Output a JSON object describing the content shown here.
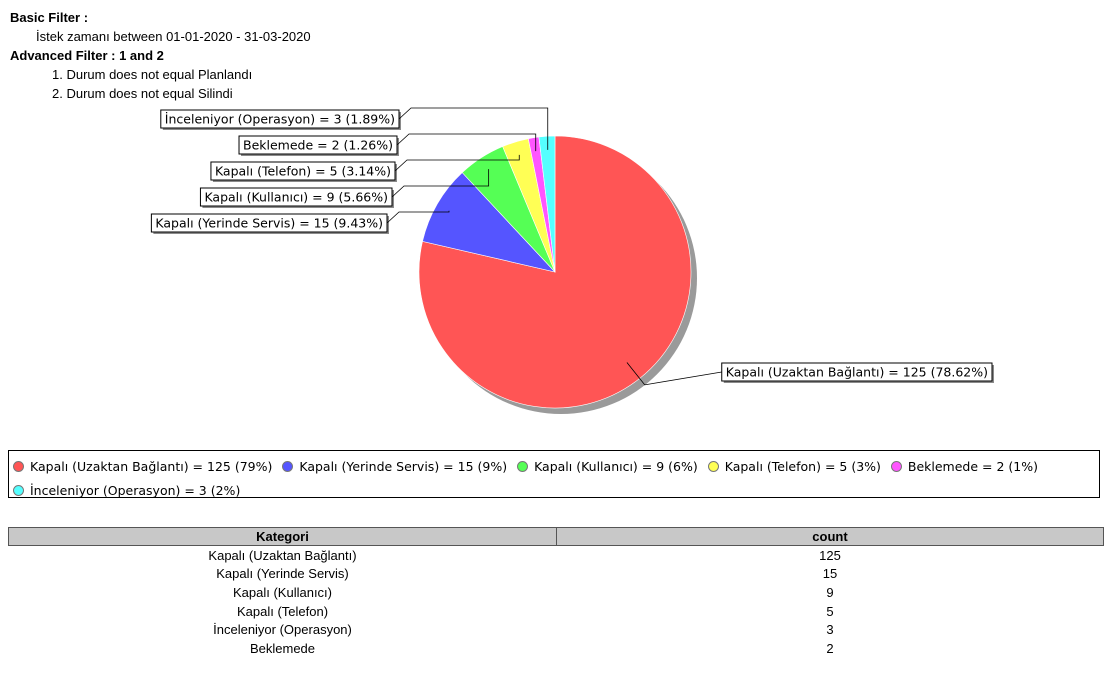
{
  "filters": {
    "basic_label": "Basic Filter :",
    "basic_condition": "İstek zamanı between 01-01-2020 - 31-03-2020",
    "advanced_label": "Advanced Filter : 1 and 2",
    "conditions": [
      "1. Durum does not equal Planlandı",
      "2. Durum does not equal Silindi"
    ]
  },
  "chart_data": {
    "type": "pie",
    "categories": [
      "Kapalı (Uzaktan Bağlantı)",
      "Kapalı (Yerinde Servis)",
      "Kapalı (Kullanıcı)",
      "Kapalı (Telefon)",
      "Beklemede",
      "İnceleniyor (Operasyon)"
    ],
    "values": [
      125,
      15,
      9,
      5,
      2,
      3
    ],
    "colors": [
      "#ff5555",
      "#5555ff",
      "#55ff55",
      "#ffff55",
      "#ff55ff",
      "#55ffff"
    ],
    "slice_labels": [
      "Kapalı (Uzaktan Bağlantı) = 125 (78.62%)",
      "Kapalı (Yerinde Servis) = 15 (9.43%)",
      "Kapalı (Kullanıcı) = 9 (5.66%)",
      "Kapalı (Telefon) = 5 (3.14%)",
      "Beklemede = 2 (1.26%)",
      "İnceleniyor (Operasyon) = 3 (1.89%)"
    ],
    "legend": [
      "Kapalı (Uzaktan Bağlantı) = 125 (79%)",
      "Kapalı (Yerinde Servis) = 15 (9%)",
      "Kapalı (Kullanıcı) = 9 (6%)",
      "Kapalı (Telefon) = 5 (3%)",
      "Beklemede = 2 (1%)",
      "İnceleniyor (Operasyon) = 3 (2%)"
    ]
  },
  "table": {
    "headers": [
      "Kategori",
      "count"
    ],
    "rows": [
      [
        "Kapalı (Uzaktan Bağlantı)",
        "125"
      ],
      [
        "Kapalı (Yerinde Servis)",
        "15"
      ],
      [
        "Kapalı (Kullanıcı)",
        "9"
      ],
      [
        "Kapalı (Telefon)",
        "5"
      ],
      [
        "İnceleniyor (Operasyon)",
        "3"
      ],
      [
        "Beklemede",
        "2"
      ]
    ]
  }
}
